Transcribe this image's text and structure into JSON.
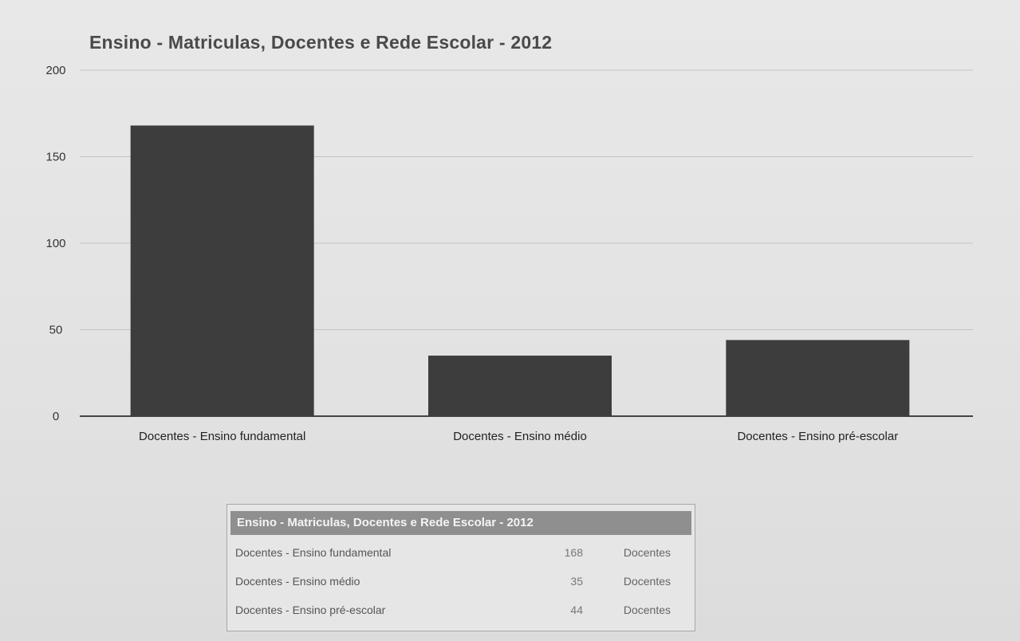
{
  "chart_data": {
    "type": "bar",
    "title": "Ensino - Matriculas, Docentes e Rede Escolar - 2012",
    "categories": [
      "Docentes - Ensino fundamental",
      "Docentes - Ensino médio",
      "Docentes - Ensino pré-escolar"
    ],
    "values": [
      168,
      35,
      44
    ],
    "ylim": [
      0,
      200
    ],
    "yticks": [
      "0",
      "50",
      "100",
      "150",
      "200"
    ],
    "xlabel": "",
    "ylabel": "",
    "grid": true,
    "legend": "none"
  },
  "table": {
    "header": "Ensino - Matriculas, Docentes e Rede Escolar - 2012",
    "rows": [
      {
        "name": "Docentes - Ensino fundamental",
        "value": "168",
        "unit": "Docentes"
      },
      {
        "name": "Docentes - Ensino médio",
        "value": "35",
        "unit": "Docentes"
      },
      {
        "name": "Docentes - Ensino pré-escolar",
        "value": "44",
        "unit": "Docentes"
      }
    ]
  },
  "colors": {
    "bar": "#3d3d3d",
    "grid": "#c4c4c4",
    "axis": "#444444",
    "table_header": "#8f8f8f"
  }
}
